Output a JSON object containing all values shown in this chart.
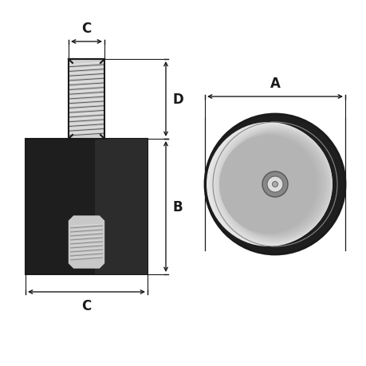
{
  "bg_color": "#ffffff",
  "line_color": "#1a1a1a",
  "rubber_dark": "#1e1e1e",
  "rubber_mid": "#3a3a3a",
  "rubber_light": "#555555",
  "thread_bg": "#d0d0d0",
  "thread_line": "#555555",
  "thread_highlight": "#f0f0f0",
  "insert_bg": "#c8c8c8",
  "insert_line": "#888888",
  "metal_disc_light": "#e8e8e8",
  "metal_disc_dark": "#aaaaaa",
  "hole_outer": "#888888",
  "hole_inner": "#dddddd",
  "hole_center": "#aaaaaa",
  "label_A": "A",
  "label_B": "B",
  "label_C": "C",
  "label_D": "D",
  "font_size_label": 12,
  "font_weight": "bold",
  "dim_lw": 1.0,
  "border_lw": 1.5
}
